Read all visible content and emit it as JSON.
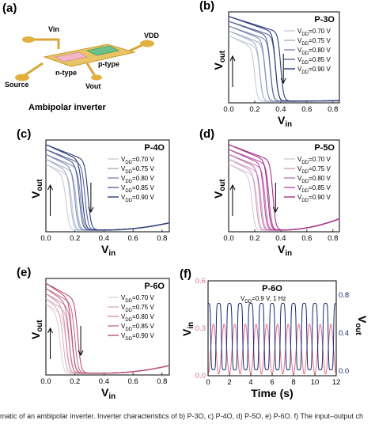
{
  "schematic": {
    "panel_label": "(a)",
    "caption": "Ambipolar inverter",
    "labels": {
      "vin": "Vin",
      "vdd": "VDD",
      "source": "Source",
      "ntype": "n-type",
      "ptype": "p-type",
      "vout": "Vout"
    }
  },
  "caption_text": "matic of an ambipolar inverter. Inverter characteristics of b) P-3O, c) P-4O, d) P-5O, e) P-6O. f) The input–output ch",
  "chart_data": [
    {
      "panel": "(b)",
      "type": "line",
      "title": "P-3O",
      "xlabel": "Vin",
      "ylabel": "Vout",
      "xlim": [
        0,
        0.85
      ],
      "ylim": [
        0,
        0.9
      ],
      "xticks": [
        "0.0",
        "0.2",
        "0.4",
        "0.6",
        "0.8"
      ],
      "legend_position": "top-right",
      "palette": [
        "#c8ccd8",
        "#a6aec8",
        "#7f8cb4",
        "#56659c",
        "#2a3a7c"
      ],
      "series": [
        {
          "name": "VDD=0.70 V",
          "vdd": 0.7,
          "switch": 0.2
        },
        {
          "name": "VDD=0.75 V",
          "vdd": 0.75,
          "switch": 0.24
        },
        {
          "name": "VDD=0.80 V",
          "vdd": 0.8,
          "switch": 0.28
        },
        {
          "name": "VDD=0.85 V",
          "vdd": 0.85,
          "switch": 0.32
        },
        {
          "name": "VDD=0.90 V",
          "vdd": 0.9,
          "switch": 0.36
        }
      ]
    },
    {
      "panel": "(c)",
      "type": "line",
      "title": "P-4O",
      "xlabel": "Vin",
      "ylabel": "Vout",
      "xlim": [
        0,
        0.85
      ],
      "ylim": [
        0,
        0.9
      ],
      "xticks": [
        "0.0",
        "0.2",
        "0.4",
        "0.6",
        "0.8"
      ],
      "legend_position": "top-right",
      "palette": [
        "#c8ccd8",
        "#a6aec8",
        "#7f8cb4",
        "#56659c",
        "#2a3a7c"
      ],
      "series": [
        {
          "name": "VDD=0.70 V",
          "vdd": 0.7,
          "switch": 0.14
        },
        {
          "name": "VDD=0.75 V",
          "vdd": 0.75,
          "switch": 0.17
        },
        {
          "name": "VDD=0.80 V",
          "vdd": 0.8,
          "switch": 0.2
        },
        {
          "name": "VDD=0.85 V",
          "vdd": 0.85,
          "switch": 0.23
        },
        {
          "name": "VDD=0.90 V",
          "vdd": 0.9,
          "switch": 0.25
        }
      ]
    },
    {
      "panel": "(d)",
      "type": "line",
      "title": "P-5O",
      "xlabel": "Vin",
      "ylabel": "Vout",
      "xlim": [
        0,
        0.85
      ],
      "ylim": [
        0,
        0.9
      ],
      "xticks": [
        "0.0",
        "0.2",
        "0.4",
        "0.6",
        "0.8"
      ],
      "legend_position": "top-right",
      "palette": [
        "#dcc6d8",
        "#cfa0c6",
        "#c278b2",
        "#b8509e",
        "#a8308a"
      ],
      "series": [
        {
          "name": "VDD=0.70 V",
          "vdd": 0.7,
          "switch": 0.18
        },
        {
          "name": "VDD=0.75 V",
          "vdd": 0.75,
          "switch": 0.21
        },
        {
          "name": "VDD=0.80 V",
          "vdd": 0.8,
          "switch": 0.24
        },
        {
          "name": "VDD=0.85 V",
          "vdd": 0.85,
          "switch": 0.27
        },
        {
          "name": "VDD=0.90 V",
          "vdd": 0.9,
          "switch": 0.3
        }
      ]
    },
    {
      "panel": "(e)",
      "type": "line",
      "title": "P-6O",
      "xlabel": "Vin",
      "ylabel": "Vout",
      "xlim": [
        0,
        0.85
      ],
      "ylim": [
        0,
        0.9
      ],
      "xticks": [
        "0.0",
        "0.2",
        "0.4",
        "0.6",
        "0.8"
      ],
      "legend_position": "top-right",
      "palette": [
        "#e6cdd8",
        "#ddb0c2",
        "#d492ac",
        "#c87092",
        "#bc5078"
      ],
      "series": [
        {
          "name": "VDD=0.70 V",
          "vdd": 0.7,
          "switch": 0.1
        },
        {
          "name": "VDD=0.75 V",
          "vdd": 0.75,
          "switch": 0.12
        },
        {
          "name": "VDD=0.80 V",
          "vdd": 0.8,
          "switch": 0.14
        },
        {
          "name": "VDD=0.85 V",
          "vdd": 0.85,
          "switch": 0.16
        },
        {
          "name": "VDD=0.90 V",
          "vdd": 0.9,
          "switch": 0.18
        }
      ]
    },
    {
      "panel": "(f)",
      "type": "line",
      "title": "P-6O",
      "subtitle": "VDD=0.9 V, 1 Hz",
      "xlabel": "Time (s)",
      "ylabel_left": "Vin",
      "ylabel_right": "Vout",
      "xlim": [
        0,
        12
      ],
      "xticks": [
        "0",
        "2",
        "4",
        "6",
        "8",
        "10",
        "12"
      ],
      "ylim_left": [
        0,
        0.6
      ],
      "yticks_left": [
        "0.0",
        "0.3",
        "0.6"
      ],
      "ylim_right": [
        -0.05,
        0.95
      ],
      "yticks_right": [
        "0.0",
        "0.4",
        "0.8"
      ],
      "left_color": "#e07090",
      "right_color": "#1a2870",
      "series": [
        {
          "name": "Vin",
          "axis": "left",
          "amplitude": 0.5,
          "frequency_hz": 1
        },
        {
          "name": "Vout",
          "axis": "right",
          "amplitude": 0.8,
          "frequency_hz": 1
        }
      ]
    }
  ]
}
